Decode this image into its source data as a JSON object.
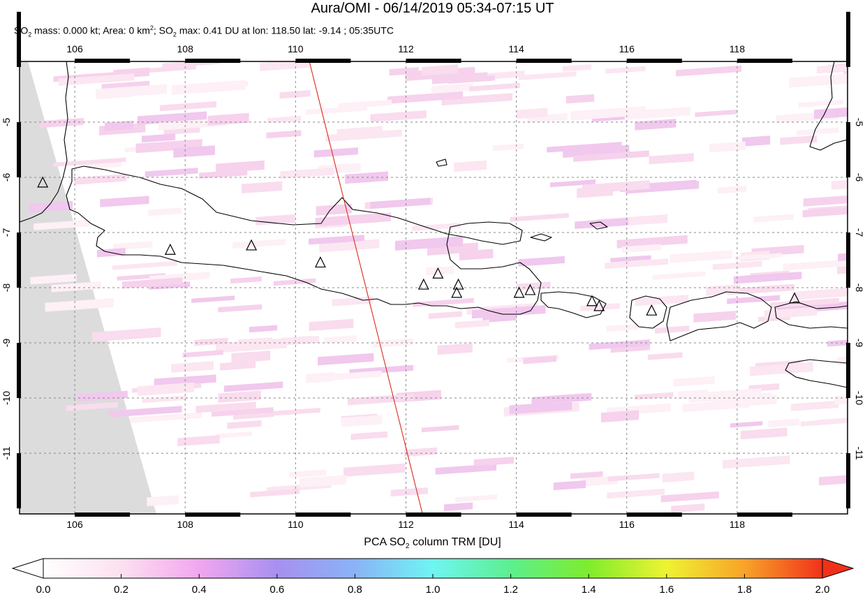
{
  "header": {
    "title": "Aura/OMI - 06/14/2019 05:34-07:15 UT",
    "stats": {
      "so2_mass_prefix": "SO",
      "so2_mass_mid": " mass: 0.000 kt; Area: 0 km",
      "area_sup": "2",
      "so2_max_prefix": "; SO",
      "so2_max_rest": " max: 0.41 DU at lon: 118.50 lat: -9.14 ; 05:35UTC"
    }
  },
  "map": {
    "lon_range": [
      105,
      120
    ],
    "lat_range": [
      -12.1,
      -3.9
    ],
    "lon_ticks": [
      "106",
      "108",
      "110",
      "112",
      "114",
      "116",
      "118"
    ],
    "lat_ticks": [
      "-5",
      "-6",
      "-7",
      "-8",
      "-9",
      "-10",
      "-11"
    ],
    "orbit_track": {
      "from": [
        110.25,
        -3.9
      ],
      "to": [
        112.3,
        -12.1
      ],
      "color": "#dd2a1c"
    },
    "volcanoes": [
      {
        "lon": 105.42,
        "lat": -6.1
      },
      {
        "lon": 107.73,
        "lat": -7.32
      },
      {
        "lon": 109.2,
        "lat": -7.24
      },
      {
        "lon": 110.45,
        "lat": -7.55
      },
      {
        "lon": 112.32,
        "lat": -7.95
      },
      {
        "lon": 112.58,
        "lat": -7.75
      },
      {
        "lon": 112.95,
        "lat": -7.95
      },
      {
        "lon": 112.92,
        "lat": -8.1
      },
      {
        "lon": 114.05,
        "lat": -8.1
      },
      {
        "lon": 114.25,
        "lat": -8.05
      },
      {
        "lon": 115.37,
        "lat": -8.25
      },
      {
        "lon": 115.5,
        "lat": -8.34
      },
      {
        "lon": 116.45,
        "lat": -8.42
      },
      {
        "lon": 119.04,
        "lat": -8.2
      }
    ]
  },
  "colorbar": {
    "title_prefix": "PCA SO",
    "title_suffix": " column TRM [DU]",
    "ticks": [
      "0.0",
      "0.2",
      "0.4",
      "0.6",
      "0.8",
      "1.0",
      "1.2",
      "1.4",
      "1.6",
      "1.8",
      "2.0"
    ],
    "range": [
      0,
      2
    ],
    "colors": [
      "#ffffff",
      "#fde0ef",
      "#f2a6ef",
      "#a790f0",
      "#8ab3f7",
      "#6ff5f2",
      "#5cef8e",
      "#7fec2d",
      "#eef332",
      "#f8a32a",
      "#f0311a"
    ]
  }
}
